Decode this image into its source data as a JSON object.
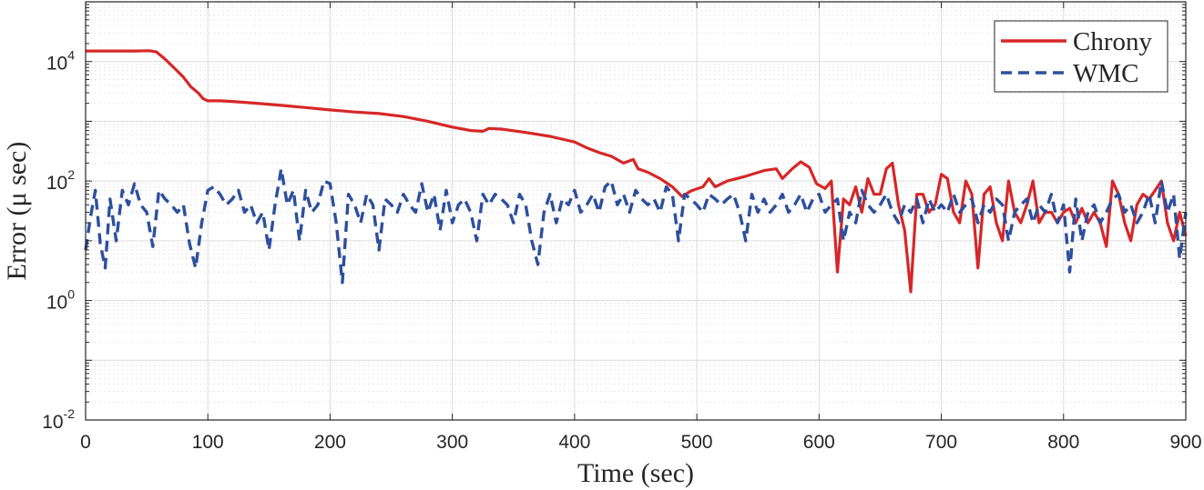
{
  "chart_data": {
    "type": "line",
    "title": "",
    "xlabel": "Time (sec)",
    "ylabel": "Error (μ sec)",
    "xlim": [
      0,
      900
    ],
    "ylim": [
      0.01,
      100000
    ],
    "yscale": "log",
    "grid": true,
    "legend_position": "top-right",
    "x_ticks": [
      "0",
      "100",
      "200",
      "300",
      "400",
      "500",
      "600",
      "700",
      "800",
      "900"
    ],
    "y_ticks": [
      {
        "base": "10",
        "exp": "-2",
        "value": 0.01
      },
      {
        "base": "10",
        "exp": "0",
        "value": 1
      },
      {
        "base": "10",
        "exp": "2",
        "value": 100
      },
      {
        "base": "10",
        "exp": "4",
        "value": 10000
      }
    ],
    "series": [
      {
        "name": "Chrony",
        "color": "#d62728",
        "style": "solid",
        "points": [
          [
            0,
            15000
          ],
          [
            20,
            15000
          ],
          [
            40,
            15000
          ],
          [
            52,
            15200
          ],
          [
            58,
            14500
          ],
          [
            65,
            11000
          ],
          [
            72,
            8000
          ],
          [
            80,
            5500
          ],
          [
            86,
            3800
          ],
          [
            92,
            3000
          ],
          [
            96,
            2400
          ],
          [
            100,
            2200
          ],
          [
            110,
            2200
          ],
          [
            120,
            2150
          ],
          [
            140,
            2000
          ],
          [
            160,
            1850
          ],
          [
            180,
            1700
          ],
          [
            200,
            1550
          ],
          [
            220,
            1430
          ],
          [
            240,
            1350
          ],
          [
            260,
            1200
          ],
          [
            280,
            1000
          ],
          [
            300,
            800
          ],
          [
            315,
            700
          ],
          [
            325,
            680
          ],
          [
            330,
            760
          ],
          [
            340,
            740
          ],
          [
            360,
            650
          ],
          [
            380,
            560
          ],
          [
            400,
            450
          ],
          [
            410,
            360
          ],
          [
            420,
            300
          ],
          [
            430,
            260
          ],
          [
            440,
            200
          ],
          [
            448,
            230
          ],
          [
            452,
            160
          ],
          [
            460,
            140
          ],
          [
            470,
            110
          ],
          [
            480,
            80
          ],
          [
            488,
            55
          ],
          [
            495,
            68
          ],
          [
            505,
            80
          ],
          [
            510,
            110
          ],
          [
            515,
            80
          ],
          [
            525,
            100
          ],
          [
            540,
            120
          ],
          [
            555,
            150
          ],
          [
            565,
            160
          ],
          [
            570,
            110
          ],
          [
            578,
            160
          ],
          [
            585,
            210
          ],
          [
            592,
            170
          ],
          [
            598,
            90
          ],
          [
            605,
            75
          ],
          [
            610,
            100
          ],
          [
            615,
            3
          ],
          [
            620,
            50
          ],
          [
            625,
            40
          ],
          [
            630,
            80
          ],
          [
            635,
            30
          ],
          [
            640,
            110
          ],
          [
            645,
            60
          ],
          [
            650,
            60
          ],
          [
            655,
            160
          ],
          [
            660,
            200
          ],
          [
            665,
            40
          ],
          [
            670,
            15
          ],
          [
            675,
            1.4
          ],
          [
            680,
            60
          ],
          [
            685,
            60
          ],
          [
            690,
            30
          ],
          [
            695,
            40
          ],
          [
            700,
            130
          ],
          [
            705,
            110
          ],
          [
            710,
            30
          ],
          [
            715,
            20
          ],
          [
            720,
            100
          ],
          [
            725,
            60
          ],
          [
            730,
            3.5
          ],
          [
            735,
            60
          ],
          [
            740,
            80
          ],
          [
            745,
            20
          ],
          [
            750,
            10
          ],
          [
            755,
            100
          ],
          [
            760,
            30
          ],
          [
            765,
            20
          ],
          [
            770,
            40
          ],
          [
            775,
            100
          ],
          [
            780,
            20
          ],
          [
            785,
            30
          ],
          [
            790,
            30
          ],
          [
            795,
            20
          ],
          [
            800,
            30
          ],
          [
            805,
            35
          ],
          [
            810,
            20
          ],
          [
            815,
            35
          ],
          [
            820,
            20
          ],
          [
            825,
            30
          ],
          [
            830,
            20
          ],
          [
            835,
            8
          ],
          [
            840,
            100
          ],
          [
            845,
            60
          ],
          [
            850,
            20
          ],
          [
            855,
            10
          ],
          [
            860,
            40
          ],
          [
            865,
            60
          ],
          [
            870,
            50
          ],
          [
            875,
            70
          ],
          [
            880,
            100
          ],
          [
            885,
            20
          ],
          [
            890,
            10
          ],
          [
            895,
            30
          ],
          [
            900,
            12
          ]
        ]
      },
      {
        "name": "WMC",
        "color": "#2e4f9e",
        "style": "dashed",
        "points": [
          [
            0,
            7
          ],
          [
            4,
            25
          ],
          [
            8,
            70
          ],
          [
            12,
            9
          ],
          [
            16,
            3.5
          ],
          [
            20,
            50
          ],
          [
            25,
            10
          ],
          [
            30,
            70
          ],
          [
            35,
            40
          ],
          [
            40,
            90
          ],
          [
            45,
            40
          ],
          [
            50,
            30
          ],
          [
            55,
            8
          ],
          [
            60,
            70
          ],
          [
            65,
            50
          ],
          [
            70,
            40
          ],
          [
            75,
            30
          ],
          [
            80,
            40
          ],
          [
            85,
            9
          ],
          [
            90,
            3.5
          ],
          [
            95,
            20
          ],
          [
            100,
            70
          ],
          [
            105,
            80
          ],
          [
            110,
            60
          ],
          [
            115,
            40
          ],
          [
            120,
            50
          ],
          [
            125,
            70
          ],
          [
            130,
            30
          ],
          [
            135,
            40
          ],
          [
            140,
            20
          ],
          [
            145,
            30
          ],
          [
            150,
            7
          ],
          [
            155,
            40
          ],
          [
            160,
            160
          ],
          [
            165,
            40
          ],
          [
            170,
            70
          ],
          [
            175,
            10
          ],
          [
            180,
            70
          ],
          [
            185,
            30
          ],
          [
            190,
            40
          ],
          [
            195,
            100
          ],
          [
            200,
            90
          ],
          [
            205,
            20
          ],
          [
            210,
            2
          ],
          [
            215,
            60
          ],
          [
            220,
            40
          ],
          [
            225,
            20
          ],
          [
            230,
            60
          ],
          [
            235,
            40
          ],
          [
            240,
            7
          ],
          [
            245,
            50
          ],
          [
            250,
            40
          ],
          [
            255,
            30
          ],
          [
            260,
            60
          ],
          [
            265,
            40
          ],
          [
            270,
            30
          ],
          [
            275,
            90
          ],
          [
            280,
            30
          ],
          [
            285,
            60
          ],
          [
            290,
            15
          ],
          [
            295,
            70
          ],
          [
            300,
            20
          ],
          [
            305,
            40
          ],
          [
            310,
            50
          ],
          [
            315,
            30
          ],
          [
            320,
            10
          ],
          [
            325,
            60
          ],
          [
            330,
            40
          ],
          [
            335,
            60
          ],
          [
            340,
            50
          ],
          [
            345,
            40
          ],
          [
            350,
            20
          ],
          [
            355,
            60
          ],
          [
            360,
            40
          ],
          [
            365,
            10
          ],
          [
            370,
            4
          ],
          [
            375,
            30
          ],
          [
            380,
            60
          ],
          [
            385,
            20
          ],
          [
            390,
            50
          ],
          [
            395,
            40
          ],
          [
            400,
            70
          ],
          [
            405,
            30
          ],
          [
            410,
            40
          ],
          [
            415,
            60
          ],
          [
            420,
            30
          ],
          [
            425,
            80
          ],
          [
            430,
            100
          ],
          [
            435,
            40
          ],
          [
            440,
            60
          ],
          [
            445,
            30
          ],
          [
            450,
            70
          ],
          [
            455,
            50
          ],
          [
            460,
            40
          ],
          [
            465,
            50
          ],
          [
            470,
            30
          ],
          [
            475,
            80
          ],
          [
            480,
            60
          ],
          [
            485,
            10
          ],
          [
            490,
            60
          ],
          [
            495,
            50
          ],
          [
            500,
            40
          ],
          [
            505,
            30
          ],
          [
            510,
            60
          ],
          [
            515,
            50
          ],
          [
            520,
            40
          ],
          [
            525,
            50
          ],
          [
            530,
            60
          ],
          [
            535,
            30
          ],
          [
            540,
            10
          ],
          [
            545,
            60
          ],
          [
            550,
            30
          ],
          [
            555,
            50
          ],
          [
            560,
            30
          ],
          [
            565,
            40
          ],
          [
            570,
            60
          ],
          [
            575,
            30
          ],
          [
            580,
            40
          ],
          [
            585,
            60
          ],
          [
            590,
            30
          ],
          [
            595,
            50
          ],
          [
            600,
            60
          ],
          [
            605,
            30
          ],
          [
            610,
            40
          ],
          [
            615,
            50
          ],
          [
            620,
            10
          ],
          [
            625,
            30
          ],
          [
            630,
            20
          ],
          [
            635,
            70
          ],
          [
            640,
            40
          ],
          [
            645,
            30
          ],
          [
            650,
            40
          ],
          [
            655,
            60
          ],
          [
            660,
            30
          ],
          [
            665,
            20
          ],
          [
            670,
            40
          ],
          [
            675,
            30
          ],
          [
            680,
            50
          ],
          [
            685,
            20
          ],
          [
            690,
            50
          ],
          [
            695,
            30
          ],
          [
            700,
            40
          ],
          [
            705,
            30
          ],
          [
            710,
            60
          ],
          [
            715,
            30
          ],
          [
            720,
            40
          ],
          [
            725,
            50
          ],
          [
            730,
            20
          ],
          [
            735,
            40
          ],
          [
            740,
            30
          ],
          [
            745,
            50
          ],
          [
            750,
            40
          ],
          [
            755,
            10
          ],
          [
            760,
            30
          ],
          [
            765,
            40
          ],
          [
            770,
            50
          ],
          [
            775,
            20
          ],
          [
            780,
            40
          ],
          [
            785,
            30
          ],
          [
            790,
            60
          ],
          [
            795,
            20
          ],
          [
            800,
            40
          ],
          [
            805,
            3
          ],
          [
            810,
            50
          ],
          [
            815,
            10
          ],
          [
            820,
            30
          ],
          [
            825,
            40
          ],
          [
            830,
            20
          ],
          [
            835,
            30
          ],
          [
            840,
            50
          ],
          [
            845,
            60
          ],
          [
            850,
            30
          ],
          [
            855,
            40
          ],
          [
            860,
            20
          ],
          [
            865,
            30
          ],
          [
            870,
            60
          ],
          [
            875,
            20
          ],
          [
            880,
            100
          ],
          [
            885,
            30
          ],
          [
            890,
            60
          ],
          [
            895,
            5
          ],
          [
            900,
            30
          ]
        ]
      }
    ]
  }
}
